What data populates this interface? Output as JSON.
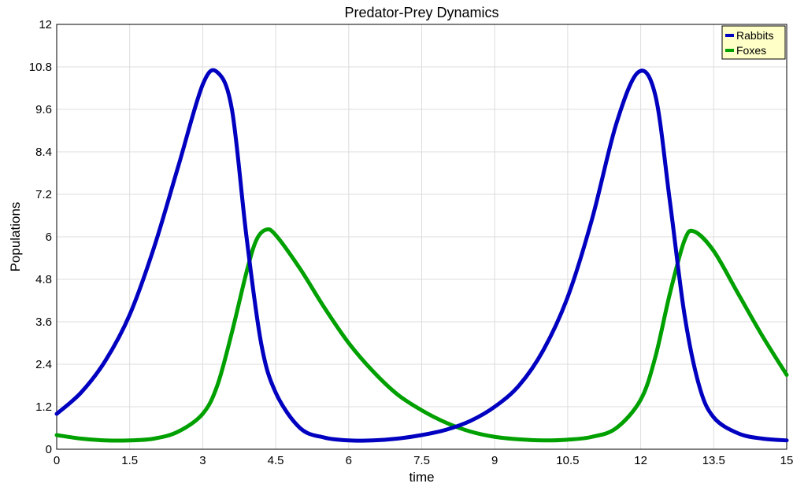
{
  "chart_data": {
    "type": "line",
    "title": "Predator-Prey Dynamics",
    "xlabel": "time",
    "ylabel": "Populations",
    "xlim": [
      0,
      15
    ],
    "ylim": [
      0,
      12
    ],
    "x_ticks": [
      "0",
      "1.5",
      "3",
      "4.5",
      "6",
      "7.5",
      "9",
      "10.5",
      "12",
      "13.5",
      "15"
    ],
    "y_ticks": [
      "0",
      "1.2",
      "2.4",
      "3.6",
      "4.8",
      "6",
      "7.2",
      "8.4",
      "9.6",
      "10.8",
      "12"
    ],
    "grid": true,
    "legend_position": "top-right",
    "series": [
      {
        "name": "Rabbits",
        "color": "#0000c0",
        "x": [
          0,
          0.5,
          1.0,
          1.5,
          2.0,
          2.5,
          3.0,
          3.3,
          3.6,
          3.9,
          4.2,
          4.5,
          5.0,
          5.5,
          6.0,
          6.5,
          7.0,
          7.5,
          8.0,
          8.5,
          9.0,
          9.5,
          10.0,
          10.5,
          11.0,
          11.5,
          11.95,
          12.3,
          12.6,
          12.9,
          13.2,
          13.5,
          14.0,
          14.5,
          15.0
        ],
        "y": [
          1.0,
          1.6,
          2.5,
          3.8,
          5.7,
          8.0,
          10.3,
          10.65,
          9.6,
          6.0,
          3.0,
          1.6,
          0.6,
          0.33,
          0.25,
          0.25,
          0.3,
          0.4,
          0.55,
          0.8,
          1.2,
          1.8,
          2.8,
          4.3,
          6.5,
          9.2,
          10.65,
          10.0,
          7.0,
          3.8,
          1.8,
          0.9,
          0.45,
          0.3,
          0.25
        ]
      },
      {
        "name": "Foxes",
        "color": "#00a000",
        "x": [
          0,
          0.5,
          1.0,
          1.5,
          2.0,
          2.5,
          3.0,
          3.3,
          3.6,
          3.9,
          4.1,
          4.3,
          4.5,
          5.0,
          5.5,
          6.0,
          6.5,
          7.0,
          7.5,
          8.0,
          8.5,
          9.0,
          9.5,
          10.0,
          10.5,
          11.0,
          11.5,
          12.0,
          12.3,
          12.6,
          12.9,
          13.1,
          13.5,
          14.0,
          14.5,
          15.0
        ],
        "y": [
          0.4,
          0.3,
          0.25,
          0.25,
          0.3,
          0.5,
          1.0,
          1.8,
          3.3,
          5.0,
          5.9,
          6.2,
          6.05,
          5.1,
          4.0,
          3.0,
          2.2,
          1.55,
          1.1,
          0.75,
          0.5,
          0.35,
          0.28,
          0.25,
          0.27,
          0.35,
          0.6,
          1.4,
          2.6,
          4.4,
          5.9,
          6.15,
          5.6,
          4.4,
          3.2,
          2.1
        ]
      }
    ]
  }
}
